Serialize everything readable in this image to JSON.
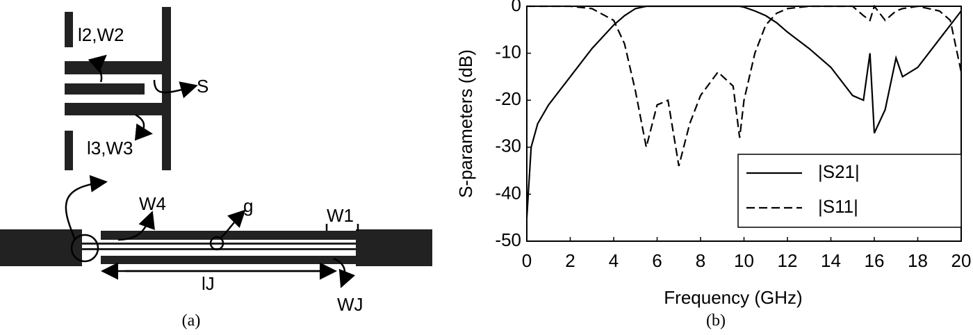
{
  "diagram": {
    "labels": [
      "l2,W2",
      "S",
      "l3,W3",
      "W4",
      "g",
      "W1",
      "lJ",
      "WJ"
    ],
    "caption": "(a)"
  },
  "chart_data": {
    "type": "line",
    "caption": "(b)",
    "x_label": "Frequency (GHz)",
    "y_label": "S-parameters (dB)",
    "x": [
      0,
      0.2,
      0.5,
      1,
      2,
      3,
      4,
      4.5,
      5,
      5.5,
      6,
      6.5,
      7,
      7.5,
      8,
      8.8,
      9.5,
      9.8,
      10,
      10.5,
      11,
      11.5,
      12,
      13,
      14,
      15,
      15.5,
      15.8,
      16,
      16.5,
      17,
      17.3,
      18,
      19,
      19.5,
      20
    ],
    "series": [
      {
        "name": "|S21|",
        "color": "#000000",
        "line_style": "solid",
        "values": [
          -45,
          -30,
          -25,
          -21,
          -15,
          -9,
          -4,
          -2,
          -0.5,
          0,
          0,
          0,
          0,
          0,
          0,
          0,
          0,
          0,
          -0.2,
          -1,
          -2,
          -3.5,
          -5.5,
          -9,
          -13,
          -19,
          -20,
          -10,
          -27,
          -22,
          -11,
          -15,
          -13,
          -7,
          -4,
          -1
        ]
      },
      {
        "name": "|S11|",
        "color": "#000000",
        "line_style": "dashed",
        "values": [
          0,
          0,
          0,
          0,
          0,
          -0.5,
          -3,
          -8,
          -18,
          -30,
          -21,
          -20,
          -34,
          -25,
          -19,
          -14,
          -17,
          -28,
          -20,
          -10,
          -4,
          -1.5,
          -0.5,
          0,
          0,
          0,
          -2,
          -3,
          0,
          -3,
          -1,
          -0.5,
          0,
          -1,
          -3,
          -14
        ]
      }
    ],
    "xlim": [
      0,
      20
    ],
    "xticks": [
      0,
      2,
      4,
      6,
      8,
      10,
      12,
      14,
      16,
      18,
      20
    ],
    "ylim": [
      -50,
      0
    ],
    "yticks": [
      -50,
      -40,
      -30,
      -20,
      -10,
      0
    ],
    "legend": "lower right"
  }
}
